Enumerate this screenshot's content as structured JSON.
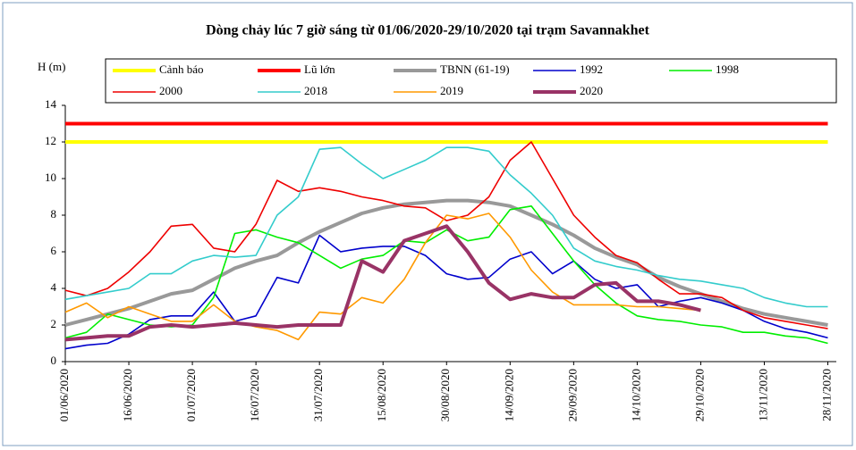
{
  "chart_data": {
    "type": "line",
    "title": "Dòng chảy lúc 7 giờ sáng từ 01/06/2020-29/10/2020 tại trạm Savannakhet",
    "ylabel": "H (m)",
    "x": [
      0,
      5,
      10,
      15,
      20,
      25,
      30,
      35,
      40,
      45,
      50,
      55,
      60,
      65,
      70,
      75,
      80,
      85,
      90,
      95,
      100,
      105,
      110,
      115,
      120,
      125,
      130,
      135,
      140,
      145,
      150,
      155,
      160,
      165,
      170,
      175,
      180
    ],
    "xlim": [
      0,
      182
    ],
    "xticks": [
      {
        "value": 0,
        "label": "01/06/2020"
      },
      {
        "value": 15,
        "label": "16/06/2020"
      },
      {
        "value": 30,
        "label": "01/07/2020"
      },
      {
        "value": 45,
        "label": "16/07/2020"
      },
      {
        "value": 60,
        "label": "31/07/2020"
      },
      {
        "value": 75,
        "label": "15/08/2020"
      },
      {
        "value": 90,
        "label": "30/08/2020"
      },
      {
        "value": 105,
        "label": "14/09/2020"
      },
      {
        "value": 120,
        "label": "29/09/2020"
      },
      {
        "value": 135,
        "label": "14/10/2020"
      },
      {
        "value": 150,
        "label": "29/10/2020"
      },
      {
        "value": 165,
        "label": "13/11/2020"
      },
      {
        "value": 180,
        "label": "28/11/2020"
      }
    ],
    "ylim": [
      0,
      14
    ],
    "yticks": [
      0,
      2,
      4,
      6,
      8,
      10,
      12,
      14
    ],
    "series": [
      {
        "name": "Cảnh báo",
        "color": "#ffff00",
        "width": 4,
        "values": [
          12,
          12,
          12,
          12,
          12,
          12,
          12,
          12,
          12,
          12,
          12,
          12,
          12,
          12,
          12,
          12,
          12,
          12,
          12,
          12,
          12,
          12,
          12,
          12,
          12,
          12,
          12,
          12,
          12,
          12,
          12,
          12,
          12,
          12,
          12,
          12,
          12
        ]
      },
      {
        "name": "Lũ lớn",
        "color": "#ff0000",
        "width": 4,
        "values": [
          13,
          13,
          13,
          13,
          13,
          13,
          13,
          13,
          13,
          13,
          13,
          13,
          13,
          13,
          13,
          13,
          13,
          13,
          13,
          13,
          13,
          13,
          13,
          13,
          13,
          13,
          13,
          13,
          13,
          13,
          13,
          13,
          13,
          13,
          13,
          13,
          13
        ]
      },
      {
        "name": "TBNN (61-19)",
        "color": "#999999",
        "width": 4,
        "values": [
          2.0,
          2.3,
          2.6,
          2.9,
          3.3,
          3.7,
          3.9,
          4.5,
          5.1,
          5.5,
          5.8,
          6.5,
          7.1,
          7.6,
          8.1,
          8.4,
          8.6,
          8.7,
          8.8,
          8.8,
          8.7,
          8.5,
          8.0,
          7.5,
          6.9,
          6.2,
          5.7,
          5.3,
          4.6,
          4.1,
          3.7,
          3.3,
          2.9,
          2.6,
          2.4,
          2.2,
          2.0
        ]
      },
      {
        "name": "1992",
        "color": "#0000cc",
        "width": 1.6,
        "values": [
          0.7,
          0.9,
          1.0,
          1.5,
          2.3,
          2.5,
          2.5,
          3.8,
          2.2,
          2.5,
          4.6,
          4.3,
          6.9,
          6.0,
          6.2,
          6.3,
          6.3,
          5.8,
          4.8,
          4.5,
          4.6,
          5.6,
          6.0,
          4.8,
          5.5,
          4.5,
          4.0,
          4.2,
          3.0,
          3.3,
          3.5,
          3.2,
          2.8,
          2.2,
          1.8,
          1.6,
          1.3
        ]
      },
      {
        "name": "1998",
        "color": "#00ee00",
        "width": 1.6,
        "values": [
          1.3,
          1.6,
          2.6,
          2.3,
          2.0,
          1.9,
          2.0,
          3.5,
          7.0,
          7.2,
          6.8,
          6.5,
          5.8,
          5.1,
          5.6,
          5.8,
          6.6,
          6.5,
          7.2,
          6.6,
          6.8,
          8.3,
          8.5,
          7.0,
          5.5,
          4.2,
          3.2,
          2.5,
          2.3,
          2.2,
          2.0,
          1.9,
          1.6,
          1.6,
          1.4,
          1.3,
          1.0
        ]
      },
      {
        "name": "2000",
        "color": "#ee0000",
        "width": 1.6,
        "values": [
          3.9,
          3.6,
          4.0,
          4.9,
          6.0,
          7.4,
          7.5,
          6.2,
          6.0,
          7.5,
          9.9,
          9.3,
          9.5,
          9.3,
          9.0,
          8.8,
          8.5,
          8.4,
          7.7,
          8.0,
          9.0,
          11.0,
          12.0,
          10.0,
          8.0,
          6.8,
          5.8,
          5.4,
          4.5,
          3.7,
          3.7,
          3.5,
          2.8,
          2.4,
          2.2,
          2.0,
          1.8
        ]
      },
      {
        "name": "2018",
        "color": "#33cccc",
        "width": 1.6,
        "values": [
          3.4,
          3.6,
          3.8,
          4.0,
          4.8,
          4.8,
          5.5,
          5.8,
          5.7,
          5.8,
          8.0,
          9.0,
          11.6,
          11.7,
          10.8,
          10.0,
          10.5,
          11.0,
          11.7,
          11.7,
          11.5,
          10.2,
          9.2,
          8.0,
          6.2,
          5.5,
          5.2,
          5.0,
          4.7,
          4.5,
          4.4,
          4.2,
          4.0,
          3.5,
          3.2,
          3.0,
          3.0
        ]
      },
      {
        "name": "2019",
        "color": "#ff9900",
        "width": 1.6,
        "values": [
          2.7,
          3.2,
          2.4,
          3.0,
          2.6,
          2.2,
          2.2,
          3.1,
          2.2,
          1.9,
          1.7,
          1.2,
          2.7,
          2.6,
          3.5,
          3.2,
          4.5,
          6.5,
          8.0,
          7.8,
          8.1,
          6.8,
          5.0,
          3.8,
          3.1,
          3.1,
          3.1,
          3.0,
          3.0,
          2.9,
          2.8,
          null,
          null,
          null,
          null,
          null,
          null
        ]
      },
      {
        "name": "2020",
        "color": "#993366",
        "width": 4,
        "values": [
          1.2,
          1.3,
          1.4,
          1.4,
          1.9,
          2.0,
          1.9,
          2.0,
          2.1,
          2.0,
          1.9,
          2.0,
          2.0,
          2.0,
          5.5,
          4.9,
          6.6,
          7.0,
          7.4,
          6.0,
          4.3,
          3.4,
          3.7,
          3.5,
          3.5,
          4.2,
          4.3,
          3.3,
          3.3,
          3.1,
          2.8,
          null,
          null,
          null,
          null,
          null,
          null
        ]
      }
    ]
  }
}
